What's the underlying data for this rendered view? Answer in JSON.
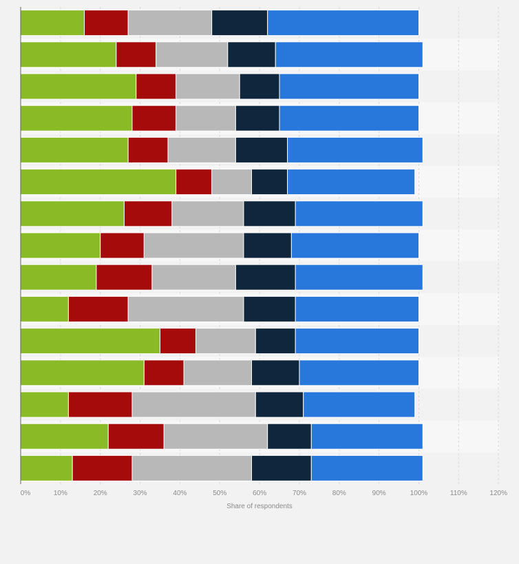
{
  "chart_data": {
    "type": "bar",
    "orientation": "horizontal",
    "stacked": true,
    "title": "",
    "xlabel": "Share of respondents",
    "ylabel": "",
    "xlim": [
      0,
      120
    ],
    "x_ticks": [
      "0%",
      "10%",
      "20%",
      "30%",
      "40%",
      "50%",
      "60%",
      "70%",
      "80%",
      "90%",
      "100%",
      "110%",
      "120%"
    ],
    "grid": true,
    "legend": "none",
    "colors": [
      "#8aba26",
      "#a50b0b",
      "#b8b8b8",
      "#10263d",
      "#2878dc"
    ],
    "categories": [
      "",
      "",
      "",
      "",
      "",
      "",
      "",
      "",
      "",
      "",
      "",
      "",
      "",
      "",
      ""
    ],
    "series": [
      {
        "values": [
          16,
          24,
          29,
          28,
          27,
          39,
          26,
          20,
          19,
          12,
          35,
          31,
          12,
          22,
          13
        ]
      },
      {
        "values": [
          11,
          10,
          10,
          11,
          10,
          9,
          12,
          11,
          14,
          15,
          9,
          10,
          16,
          14,
          15
        ]
      },
      {
        "values": [
          21,
          18,
          16,
          15,
          17,
          10,
          18,
          25,
          21,
          29,
          15,
          17,
          31,
          26,
          30
        ]
      },
      {
        "values": [
          14,
          12,
          10,
          11,
          13,
          9,
          13,
          12,
          15,
          13,
          10,
          12,
          12,
          11,
          15
        ]
      },
      {
        "values": [
          38,
          37,
          35,
          35,
          34,
          32,
          32,
          32,
          32,
          31,
          31,
          30,
          28,
          28,
          28
        ]
      }
    ]
  }
}
